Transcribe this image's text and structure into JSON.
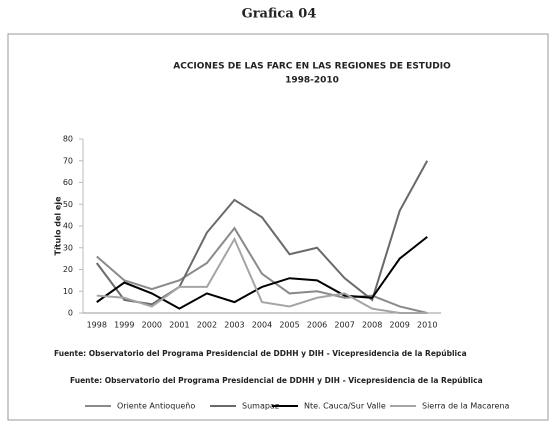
{
  "page_title": "Grafica 04",
  "chart_data": {
    "type": "line",
    "title": "ACCIONES DE LAS FARC EN  LAS REGIONES DE ESTUDIO",
    "subtitle": "1998-2010",
    "y_label": "Título del eje",
    "categories": [
      "1998",
      "1999",
      "2000",
      "2001",
      "2002",
      "2003",
      "2004",
      "2005",
      "2006",
      "2007",
      "2008",
      "2009",
      "2010"
    ],
    "series": [
      {
        "name": "Oriente Antioqueño",
        "color": "#8a8a8a",
        "values": [
          26,
          15,
          11,
          15,
          23,
          39,
          18,
          9,
          10,
          7,
          8,
          3,
          0
        ]
      },
      {
        "name": "Sumapaz",
        "color": "#6a6a6a",
        "values": [
          23,
          6,
          4,
          12,
          37,
          52,
          44,
          27,
          30,
          16,
          6,
          47,
          70
        ]
      },
      {
        "name": "Nte. Cauca/Sur Valle",
        "color": "#000000",
        "values": [
          5,
          14,
          9,
          2,
          9,
          5,
          12,
          16,
          15,
          8,
          7,
          25,
          35
        ]
      },
      {
        "name": "Sierra de la Macarena",
        "color": "#a5a5a5",
        "values": [
          8,
          7,
          3,
          12,
          12,
          34,
          5,
          3,
          7,
          9,
          2,
          0,
          0
        ]
      }
    ],
    "ylim": [
      0,
      80
    ],
    "yticks": [
      0,
      10,
      20,
      30,
      40,
      50,
      60,
      70,
      80
    ],
    "grid": false,
    "notes": [
      "Fuente: Observatorio del Programa Presidencial de DDHH y DIH - Vicepresidencia de la República",
      "Fuente: Observatorio del Programa Presidencial de DDHH y DIH - Vicepresidencia de la República"
    ],
    "legend": "bottom"
  }
}
